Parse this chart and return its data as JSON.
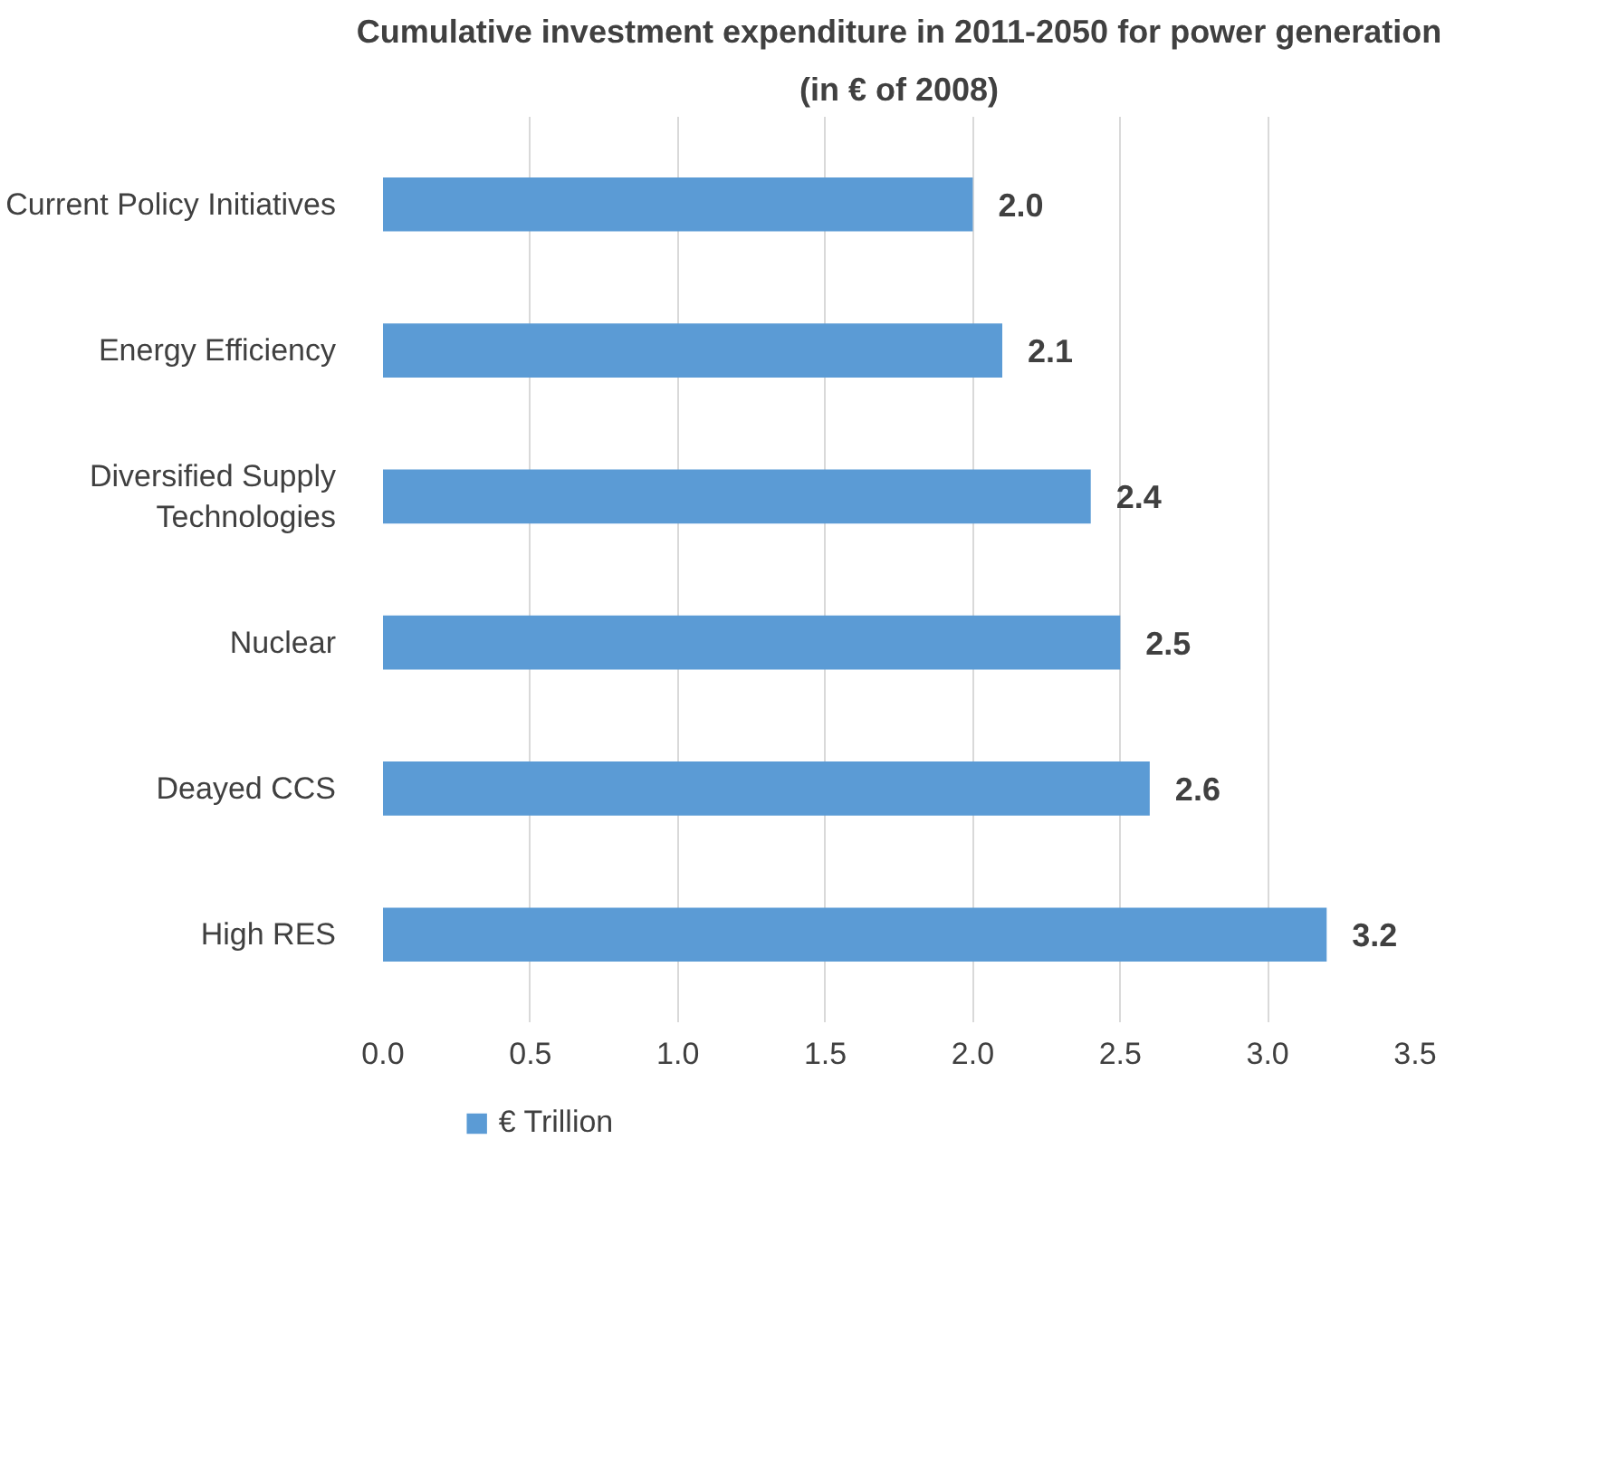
{
  "chart_data": {
    "type": "bar",
    "orientation": "horizontal",
    "title": "Cumulative investment expenditure in 2011-2050 for power generation",
    "subtitle": "(in € of 2008)",
    "categories": [
      "Current Policy Initiatives",
      "Energy Efficiency",
      "Diversified Supply Technologies",
      "Nuclear",
      "Deayed CCS",
      "High RES"
    ],
    "series": [
      {
        "name": "€ Trillion",
        "color": "#5b9bd5",
        "values": [
          2.0,
          2.1,
          2.4,
          2.5,
          2.6,
          3.2
        ]
      }
    ],
    "xlim": [
      0,
      3.5
    ],
    "xticks": [
      {
        "value": 0,
        "label": "0.0"
      },
      {
        "value": 0.5,
        "label": "0.5"
      },
      {
        "value": 1,
        "label": "1.0"
      },
      {
        "value": 1.5,
        "label": "1.5"
      },
      {
        "value": 2,
        "label": "2.0"
      },
      {
        "value": 2.5,
        "label": "2.5"
      },
      {
        "value": 3,
        "label": "3.0"
      },
      {
        "value": 3.5,
        "label": "3.5"
      }
    ],
    "value_labels": [
      "2.0",
      "2.1",
      "2.4",
      "2.5",
      "2.6",
      "3.2"
    ],
    "grid": "x",
    "legend": "bottom"
  }
}
